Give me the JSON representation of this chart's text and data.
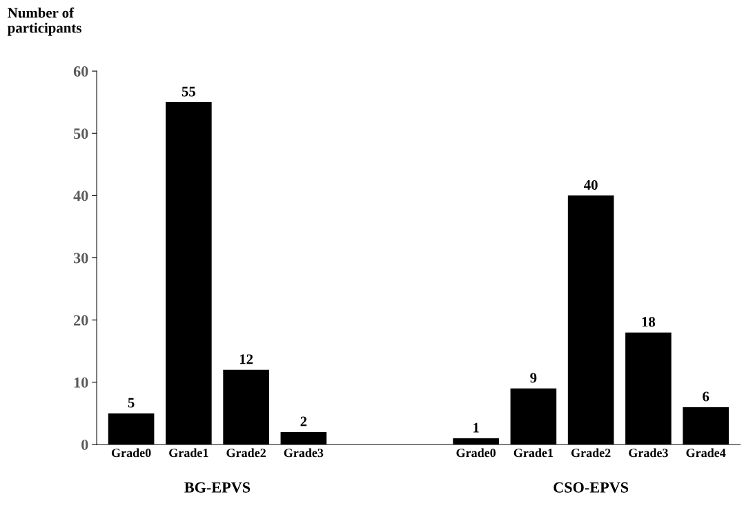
{
  "chart_data": {
    "type": "bar",
    "ylabel": "Number of\nparticipants",
    "categories": [
      "Grade0",
      "Grade1",
      "Grade2",
      "Grade3",
      null,
      null,
      "Grade0",
      "Grade1",
      "Grade2",
      "Grade3",
      "Grade4"
    ],
    "values": [
      5,
      55,
      12,
      2,
      null,
      null,
      1,
      9,
      40,
      18,
      6
    ],
    "color": "#000000",
    "ylim": [
      0,
      60
    ],
    "yticks": [
      0,
      10,
      20,
      30,
      40,
      50,
      60
    ],
    "data_labels": true,
    "grid": false,
    "legend": false,
    "annotations": [
      "BG-EPVS",
      "CSO-EPVS"
    ]
  }
}
